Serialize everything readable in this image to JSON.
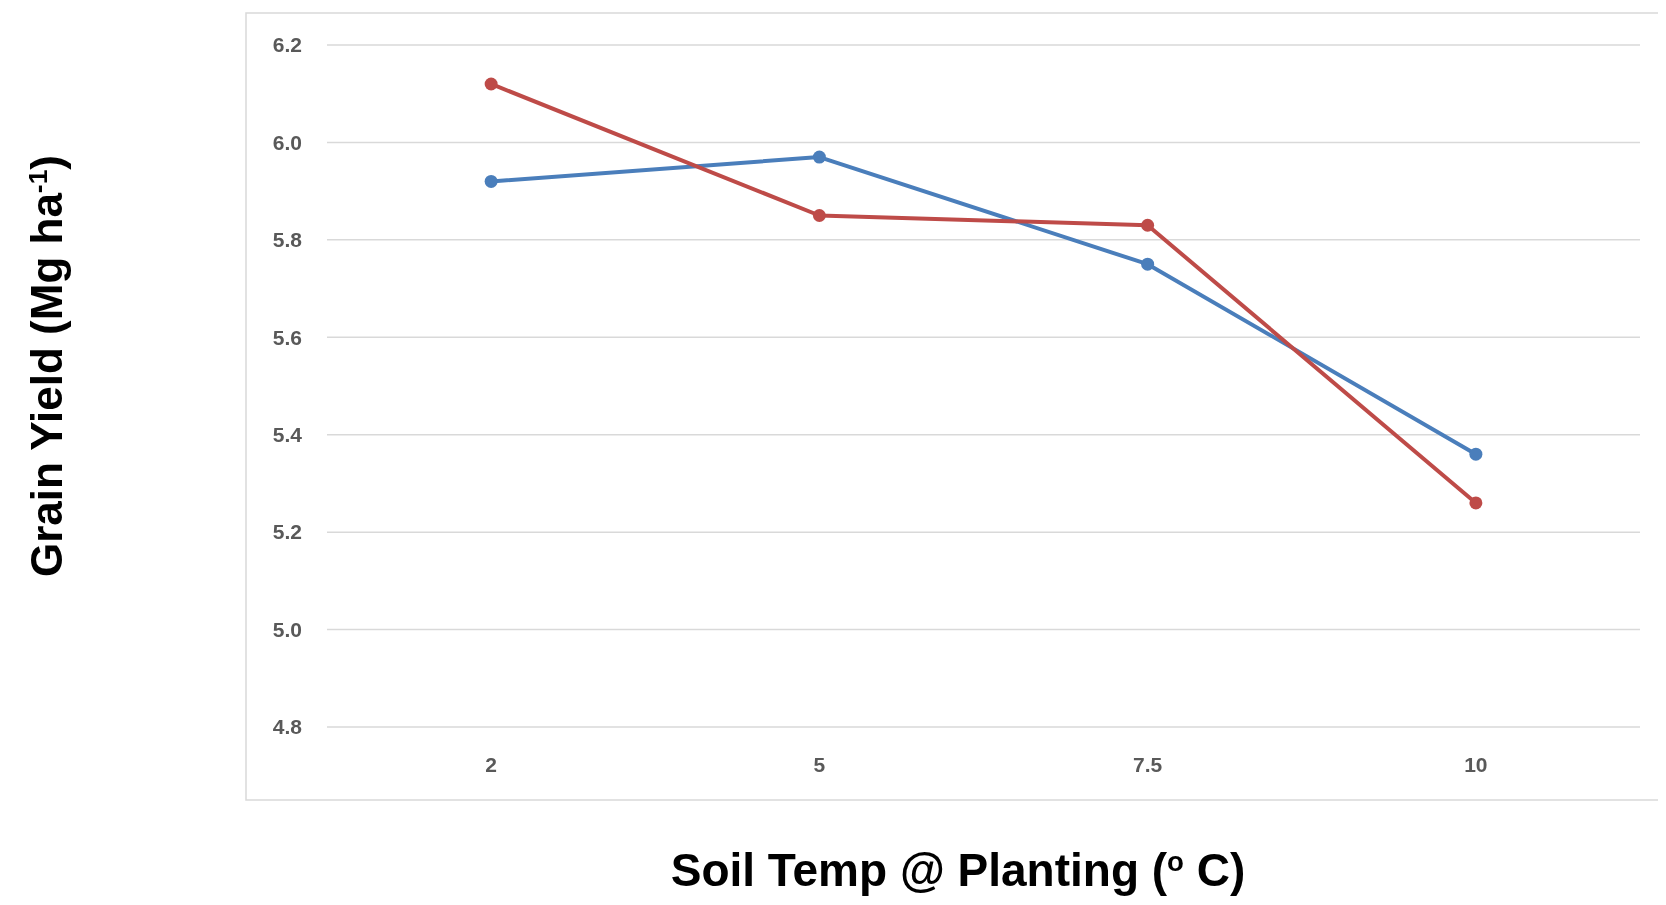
{
  "chart_data": {
    "type": "line",
    "xlabel": "Soil Temp @ Planting ($^{o}$ C)",
    "ylabel": "Grain Yield (Mg ha$^{-1}$)",
    "categories": [
      "2",
      "5",
      "7.5",
      "10"
    ],
    "series": [
      {
        "color": "#4a7ebb",
        "values": [
          5.92,
          5.97,
          5.75,
          5.36
        ]
      },
      {
        "color": "#be4b48",
        "values": [
          6.12,
          5.85,
          5.83,
          5.26
        ]
      }
    ],
    "ylim": [
      4.8,
      6.2
    ],
    "yticks": [
      {
        "value": 4.8,
        "label": "4.8"
      },
      {
        "value": 5.0,
        "label": "5.0"
      },
      {
        "value": 5.2,
        "label": "5.2"
      },
      {
        "value": 5.4,
        "label": "5.4"
      },
      {
        "value": 5.6,
        "label": "5.6"
      },
      {
        "value": 5.8,
        "label": "5.8"
      },
      {
        "value": 6.0,
        "label": "6.0"
      },
      {
        "value": 6.2,
        "label": "6.2"
      }
    ],
    "grid": "y",
    "marker": "circle",
    "line_style": "solid"
  }
}
